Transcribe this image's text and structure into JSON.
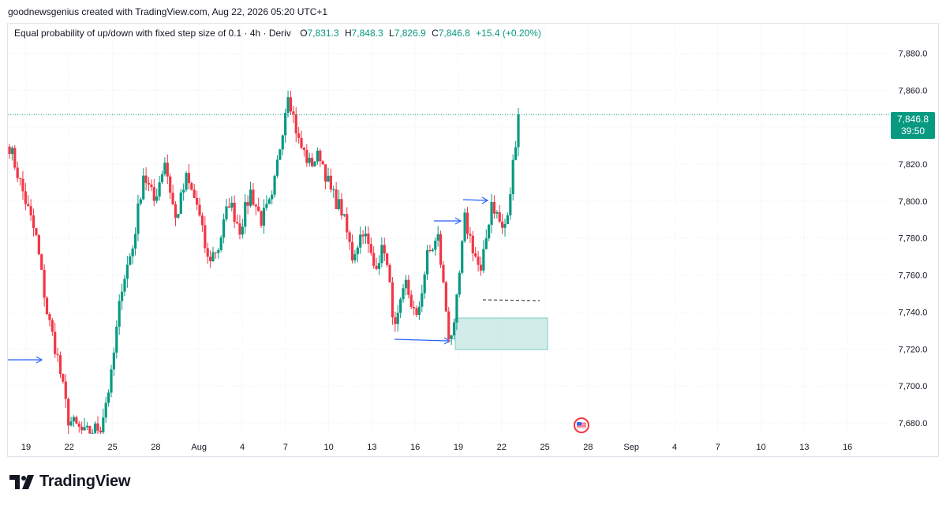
{
  "header": {
    "attribution": "goodnewsgenius created with TradingView.com, Aug 22, 2026 05:20 UTC+1"
  },
  "legend": {
    "title": "Equal probability of up/down with fixed step size of 0.1 · 4h · Deriv",
    "open_label": "O",
    "open_value": "7,831.3",
    "high_label": "H",
    "high_value": "7,848.3",
    "low_label": "L",
    "low_value": "7,826.9",
    "close_label": "C",
    "close_value": "7,846.8",
    "change": "+15.4 (+0.20%)"
  },
  "price_tag": {
    "price": "7,846.8",
    "countdown": "39:50"
  },
  "brand": {
    "name": "TradingView"
  },
  "colors": {
    "up": "#089981",
    "down": "#f23645",
    "axis_text": "#131722",
    "grid": "#f0f3fa",
    "drawing": "#2962ff",
    "zone": "#b2dfdb"
  },
  "chart_data": {
    "type": "candlestick",
    "timeframe": "4h",
    "y_axis": {
      "position": "right",
      "ticks": [
        7680,
        7700,
        7720,
        7740,
        7760,
        7780,
        7800,
        7820,
        7840,
        7860,
        7880
      ],
      "tick_labels": [
        "7,680.0",
        "7,700.0",
        "7,720.0",
        "7,740.0",
        "7,760.0",
        "7,780.0",
        "7,800.0",
        "7,820.0",
        "7,840.0",
        "7,860.0",
        "7,880.0"
      ],
      "ylim": [
        7674,
        7896
      ]
    },
    "x_axis": {
      "tick_labels": [
        "19",
        "22",
        "25",
        "28",
        "Aug",
        "4",
        "7",
        "10",
        "13",
        "16",
        "19",
        "22",
        "25",
        "28",
        "Sep",
        "4",
        "7",
        "10",
        "13",
        "16"
      ]
    },
    "last_price": 7846.8,
    "anchors": [
      {
        "x": 0,
        "y": 7830
      },
      {
        "x": 3,
        "y": 7800
      },
      {
        "x": 5,
        "y": 7780
      },
      {
        "x": 7,
        "y": 7740
      },
      {
        "x": 9,
        "y": 7715
      },
      {
        "x": 11,
        "y": 7682
      },
      {
        "x": 14,
        "y": 7674
      },
      {
        "x": 17,
        "y": 7678
      },
      {
        "x": 19,
        "y": 7705
      },
      {
        "x": 21,
        "y": 7755
      },
      {
        "x": 23,
        "y": 7775
      },
      {
        "x": 25,
        "y": 7815
      },
      {
        "x": 27,
        "y": 7800
      },
      {
        "x": 29,
        "y": 7822
      },
      {
        "x": 31,
        "y": 7790
      },
      {
        "x": 33,
        "y": 7812
      },
      {
        "x": 35,
        "y": 7798
      },
      {
        "x": 37,
        "y": 7768
      },
      {
        "x": 39,
        "y": 7775
      },
      {
        "x": 41,
        "y": 7800
      },
      {
        "x": 43,
        "y": 7785
      },
      {
        "x": 45,
        "y": 7805
      },
      {
        "x": 47,
        "y": 7790
      },
      {
        "x": 49,
        "y": 7800
      },
      {
        "x": 51,
        "y": 7840
      },
      {
        "x": 52,
        "y": 7860
      },
      {
        "x": 54,
        "y": 7832
      },
      {
        "x": 56,
        "y": 7820
      },
      {
        "x": 58,
        "y": 7825
      },
      {
        "x": 60,
        "y": 7805
      },
      {
        "x": 62,
        "y": 7795
      },
      {
        "x": 64,
        "y": 7770
      },
      {
        "x": 66,
        "y": 7785
      },
      {
        "x": 68,
        "y": 7765
      },
      {
        "x": 70,
        "y": 7775
      },
      {
        "x": 72,
        "y": 7730
      },
      {
        "x": 74,
        "y": 7755
      },
      {
        "x": 76,
        "y": 7735
      },
      {
        "x": 78,
        "y": 7770
      },
      {
        "x": 80,
        "y": 7780
      },
      {
        "x": 82,
        "y": 7728
      },
      {
        "x": 83,
        "y": 7730
      },
      {
        "x": 85,
        "y": 7790
      },
      {
        "x": 87,
        "y": 7770
      },
      {
        "x": 88,
        "y": 7760
      },
      {
        "x": 90,
        "y": 7800
      },
      {
        "x": 92,
        "y": 7785
      },
      {
        "x": 93,
        "y": 7790
      },
      {
        "x": 94,
        "y": 7820
      },
      {
        "x": 95,
        "y": 7846.8
      }
    ]
  }
}
